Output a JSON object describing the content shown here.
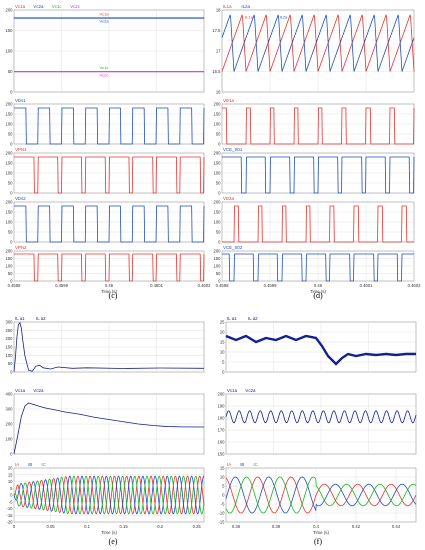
{
  "figure": {
    "captions": {
      "c": "(c)",
      "d": "(d)",
      "e": "(e)",
      "f": "(f)"
    }
  },
  "colors": {
    "red": "#e8332f",
    "blue": "#1f4fbf",
    "green": "#1fb51f",
    "magenta": "#d42bd4",
    "navy": "#15208f",
    "grid": "#d8d8d8",
    "frame": "#9a9a9a"
  },
  "chart_data": [
    {
      "id": "c1",
      "type": "line",
      "xlim": [
        0.4598,
        0.4602
      ],
      "ylim": [
        0,
        200
      ],
      "yticks": [
        "0",
        "50",
        "100",
        "150",
        "200"
      ],
      "legend": [
        "Vc1a",
        "Vc2a",
        "Vc1c",
        "Vc2c"
      ],
      "series": [
        {
          "name": "Vc1a",
          "color": "#e8332f",
          "x": [
            0.4598,
            0.4602
          ],
          "y": [
            181,
            181
          ],
          "label": "Vc1a"
        },
        {
          "name": "Vc2a",
          "color": "#1f4fbf",
          "x": [
            0.4598,
            0.4602
          ],
          "y": [
            180,
            180
          ],
          "label": "Vc2a"
        },
        {
          "name": "Vc1c",
          "color": "#1fb51f",
          "x": [
            0.4598,
            0.4602
          ],
          "y": [
            50,
            50
          ],
          "label": "Vc1c"
        },
        {
          "name": "Vc2c",
          "color": "#d42bd4",
          "x": [
            0.4598,
            0.4602
          ],
          "y": [
            49,
            49
          ],
          "label": "Vc2c"
        }
      ]
    },
    {
      "id": "c2",
      "type": "line",
      "xlim": [
        0.4598,
        0.4602
      ],
      "ylim": [
        0,
        200
      ],
      "yticks": [
        "0",
        "50",
        "100",
        "150",
        "200"
      ],
      "legend": [
        "VDs1"
      ],
      "series": [
        {
          "name": "VDs1",
          "color": "#1f4fbf",
          "wave": "square",
          "periods": 8,
          "duty": 0.5,
          "low": 0,
          "high": 180
        }
      ]
    },
    {
      "id": "c3",
      "type": "line",
      "xlim": [
        0.4598,
        0.4602
      ],
      "ylim": [
        0,
        200
      ],
      "yticks": [
        "0",
        "50",
        "100",
        "150",
        "200"
      ],
      "legend": [
        "VPN1"
      ],
      "series": [
        {
          "name": "VPN1",
          "color": "#e8332f",
          "wave": "square",
          "periods": 8,
          "duty": 0.85,
          "low": 0,
          "high": 180
        }
      ]
    },
    {
      "id": "c4",
      "type": "line",
      "xlim": [
        0.4598,
        0.4602
      ],
      "ylim": [
        0,
        200
      ],
      "yticks": [
        "0",
        "50",
        "100",
        "150",
        "200"
      ],
      "legend": [
        "VDs2"
      ],
      "series": [
        {
          "name": "VDs2",
          "color": "#1f4fbf",
          "wave": "square",
          "periods": 8,
          "duty": 0.5,
          "low": 0,
          "high": 180
        }
      ]
    },
    {
      "id": "c5",
      "type": "line",
      "xlim": [
        0.4598,
        0.4602
      ],
      "ylim": [
        0,
        200
      ],
      "yticks": [
        "0",
        "50",
        "100",
        "150",
        "200"
      ],
      "legend": [
        "VPN2"
      ],
      "xticks": [
        {
          "v": 0.4598,
          "l": "0.4598"
        },
        {
          "v": 0.4599,
          "l": "0.4599"
        },
        {
          "v": 0.46,
          "l": "0.46"
        },
        {
          "v": 0.4601,
          "l": "0.4601"
        },
        {
          "v": 0.4602,
          "l": "0.4602"
        }
      ],
      "xlabel": "Time (s)",
      "series": [
        {
          "name": "VPN2",
          "color": "#e8332f",
          "wave": "square",
          "periods": 8,
          "duty": 0.85,
          "low": 0,
          "high": 180
        }
      ]
    },
    {
      "id": "d1",
      "type": "line",
      "xlim": [
        0.4598,
        0.4602
      ],
      "ylim": [
        16,
        18
      ],
      "yticks": [
        "16",
        "16.5",
        "17",
        "17.5",
        "18"
      ],
      "legend": [
        "IL1a",
        "IL2a"
      ],
      "series": [
        {
          "name": "IL1a",
          "color": "#e8332f",
          "wave": "triangle",
          "periods": 8,
          "phase": 0,
          "low": 16.5,
          "high": 17.9,
          "label": "IL1a"
        },
        {
          "name": "IL2a",
          "color": "#1f4fbf",
          "wave": "triangle",
          "periods": 8,
          "phase": 0.5,
          "low": 16.5,
          "high": 17.9,
          "label": "IL2a"
        }
      ]
    },
    {
      "id": "d2",
      "type": "line",
      "xlim": [
        0.4598,
        0.4602
      ],
      "ylim": [
        0,
        200
      ],
      "yticks": [
        "0",
        "50",
        "100",
        "150",
        "200"
      ],
      "legend": [
        "VD1a"
      ],
      "series": [
        {
          "name": "VD1a",
          "color": "#e8332f",
          "wave": "pulse",
          "periods": 8,
          "duty": 0.18,
          "low": 0,
          "high": 180
        }
      ]
    },
    {
      "id": "d3",
      "type": "line",
      "xlim": [
        0.4598,
        0.4602
      ],
      "ylim": [
        0,
        200
      ],
      "yticks": [
        "0",
        "50",
        "100",
        "150",
        "200"
      ],
      "legend": [
        "VCE_S01"
      ],
      "series": [
        {
          "name": "VCE_S01",
          "color": "#1f4fbf",
          "wave": "square",
          "periods": 8,
          "duty": 0.82,
          "low": 0,
          "high": 180
        }
      ]
    },
    {
      "id": "d4",
      "type": "line",
      "xlim": [
        0.4598,
        0.4602
      ],
      "ylim": [
        0,
        200
      ],
      "yticks": [
        "0",
        "50",
        "100",
        "150",
        "200"
      ],
      "legend": [
        "VD2a"
      ],
      "series": [
        {
          "name": "VD2a",
          "color": "#e8332f",
          "wave": "pulse",
          "periods": 8,
          "duty": 0.18,
          "phase": 0.5,
          "low": 0,
          "high": 180
        }
      ]
    },
    {
      "id": "d5",
      "type": "line",
      "xlim": [
        0.4598,
        0.4602
      ],
      "ylim": [
        0,
        200
      ],
      "yticks": [
        "0",
        "50",
        "100",
        "150",
        "200"
      ],
      "legend": [
        "VCE_S02"
      ],
      "xticks": [
        {
          "v": 0.4598,
          "l": "0.4598"
        },
        {
          "v": 0.4599,
          "l": "0.4599"
        },
        {
          "v": 0.46,
          "l": "0.46"
        },
        {
          "v": 0.4601,
          "l": "0.4601"
        },
        {
          "v": 0.4602,
          "l": "0.4602"
        }
      ],
      "xlabel": "Time (s)",
      "series": [
        {
          "name": "VCE_S02",
          "color": "#1f4fbf",
          "wave": "square",
          "periods": 8,
          "duty": 0.82,
          "phase": 0.5,
          "low": 0,
          "high": 180
        }
      ]
    },
    {
      "id": "e1",
      "type": "line",
      "xlim": [
        0,
        0.26
      ],
      "ylim": [
        0,
        300
      ],
      "yticks": [
        "0",
        "50",
        "100",
        "150",
        "200",
        "250",
        "300"
      ],
      "legend": [
        "IL a1",
        "IL a2"
      ],
      "series": [
        {
          "name": "IL a1",
          "color": "#15208f",
          "x": [
            0,
            0.002,
            0.004,
            0.006,
            0.008,
            0.01,
            0.012,
            0.015,
            0.02,
            0.025,
            0.03,
            0.035,
            0.04,
            0.05,
            0.06,
            0.08,
            0.1,
            0.15,
            0.2,
            0.26
          ],
          "y": [
            0,
            90,
            210,
            285,
            295,
            265,
            190,
            95,
            10,
            5,
            35,
            40,
            25,
            18,
            30,
            22,
            25,
            21,
            24,
            22
          ]
        }
      ]
    },
    {
      "id": "e2",
      "type": "line",
      "xlim": [
        0,
        0.26
      ],
      "ylim": [
        0,
        400
      ],
      "yticks": [
        "0",
        "100",
        "200",
        "300",
        "400"
      ],
      "legend": [
        "Vc1a",
        "Vc2a"
      ],
      "series": [
        {
          "name": "Vc1a",
          "color": "#15208f",
          "x": [
            0,
            0.005,
            0.01,
            0.015,
            0.02,
            0.03,
            0.04,
            0.05,
            0.07,
            0.09,
            0.11,
            0.13,
            0.15,
            0.17,
            0.19,
            0.21,
            0.23,
            0.26
          ],
          "y": [
            0,
            120,
            250,
            320,
            340,
            325,
            310,
            300,
            280,
            265,
            245,
            230,
            215,
            200,
            190,
            183,
            181,
            180
          ]
        }
      ]
    },
    {
      "id": "e3",
      "type": "line",
      "xlim": [
        0,
        0.26
      ],
      "ylim": [
        -20,
        20
      ],
      "yticks": [
        "-20",
        "-15",
        "-10",
        "-5",
        "0",
        "5",
        "10",
        "15",
        "20"
      ],
      "xticks": [
        {
          "v": 0,
          "l": "0"
        },
        {
          "v": 0.05,
          "l": "0.05"
        },
        {
          "v": 0.1,
          "l": "0.1"
        },
        {
          "v": 0.15,
          "l": "0.15"
        },
        {
          "v": 0.2,
          "l": "0.2"
        },
        {
          "v": 0.25,
          "l": "0.25"
        }
      ],
      "xlabel": "Time (s)",
      "legend": [
        "IA",
        "IB",
        "IC"
      ],
      "series": [
        {
          "name": "IA",
          "color": "#e8332f",
          "wave": "sine3",
          "freq": 60,
          "phase": 0,
          "amp": 14
        },
        {
          "name": "IB",
          "color": "#1f4fbf",
          "wave": "sine3",
          "freq": 60,
          "phase": -2.094,
          "amp": 14
        },
        {
          "name": "IC",
          "color": "#1fb51f",
          "wave": "sine3",
          "freq": 60,
          "phase": 2.094,
          "amp": 14
        }
      ]
    },
    {
      "id": "f1",
      "type": "line",
      "xlim": [
        0.355,
        0.45
      ],
      "ylim": [
        0,
        25
      ],
      "yticks": [
        "0",
        "5",
        "10",
        "15",
        "20",
        "25"
      ],
      "legend": [
        "IL a1",
        "IL a2"
      ],
      "series": [
        {
          "name": "IL a1",
          "color": "#15208f",
          "x": [
            0.355,
            0.36,
            0.365,
            0.37,
            0.375,
            0.38,
            0.385,
            0.39,
            0.395,
            0.4,
            0.403,
            0.406,
            0.41,
            0.413,
            0.416,
            0.42,
            0.425,
            0.43,
            0.435,
            0.44,
            0.445,
            0.45
          ],
          "y": [
            18,
            16,
            18,
            15,
            17,
            16,
            18,
            16,
            18,
            17,
            13,
            8,
            4,
            7,
            9,
            8,
            9,
            8.5,
            9,
            8.5,
            9,
            9
          ]
        }
      ]
    },
    {
      "id": "f2",
      "type": "line",
      "xlim": [
        0.355,
        0.45
      ],
      "ylim": [
        150,
        200
      ],
      "yticks": [
        "150",
        "160",
        "170",
        "180",
        "190",
        "200"
      ],
      "legend": [
        "Vc1a",
        "Vc2a"
      ],
      "series": [
        {
          "name": "Vc1a",
          "color": "#15208f",
          "wave": "ripple",
          "base": 181,
          "amp": 5,
          "freq": 190,
          "x0": 0.355
        }
      ]
    },
    {
      "id": "f3",
      "type": "line",
      "xlim": [
        0.355,
        0.45
      ],
      "ylim": [
        -15,
        15
      ],
      "yticks": [
        "-15",
        "-10",
        "-5",
        "0",
        "5",
        "10",
        "15"
      ],
      "xticks": [
        {
          "v": 0.36,
          "l": "0.36"
        },
        {
          "v": 0.38,
          "l": "0.38"
        },
        {
          "v": 0.4,
          "l": "0.4"
        },
        {
          "v": 0.42,
          "l": "0.42"
        },
        {
          "v": 0.44,
          "l": "0.44"
        }
      ],
      "xlabel": "Time (s)",
      "legend": [
        "IA",
        "IB",
        "IC"
      ],
      "series": [
        {
          "name": "IA",
          "color": "#e8332f",
          "wave": "sine3s",
          "freq": 60,
          "phase": 0,
          "amp": 10,
          "amp2": 6,
          "tstep": 0.4
        },
        {
          "name": "IB",
          "color": "#1f4fbf",
          "wave": "sine3s",
          "freq": 60,
          "phase": -2.094,
          "amp": 10,
          "amp2": 6,
          "tstep": 0.4
        },
        {
          "name": "IC",
          "color": "#1fb51f",
          "wave": "sine3s",
          "freq": 60,
          "phase": 2.094,
          "amp": 10,
          "amp2": 6,
          "tstep": 0.4
        }
      ]
    }
  ]
}
